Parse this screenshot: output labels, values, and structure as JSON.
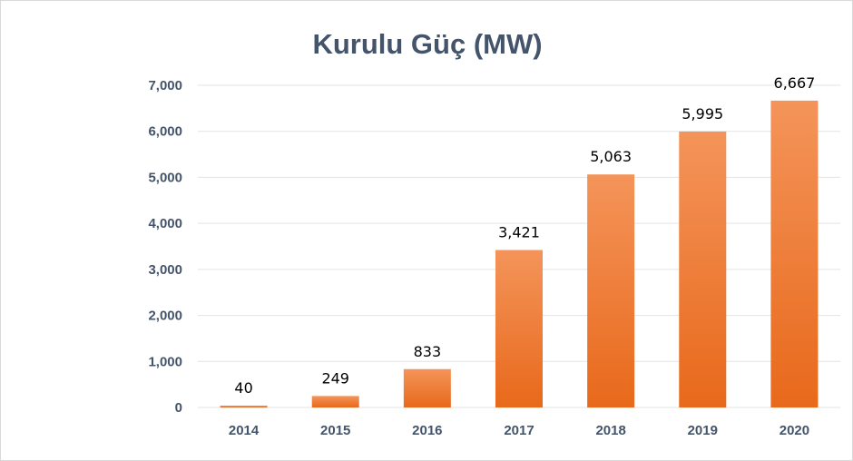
{
  "chart_data": {
    "type": "bar",
    "title": "Kurulu Güç (MW)",
    "xlabel": "",
    "ylabel": "",
    "categories": [
      "2014",
      "2015",
      "2016",
      "2017",
      "2018",
      "2019",
      "2020"
    ],
    "values": [
      40,
      249,
      833,
      3421,
      5063,
      5995,
      6667
    ],
    "value_labels": [
      "40",
      "249",
      "833",
      "3,421",
      "5,063",
      "5,995",
      "6,667"
    ],
    "ylim": [
      0,
      7000
    ],
    "y_ticks": [
      0,
      1000,
      2000,
      3000,
      4000,
      5000,
      6000,
      7000
    ],
    "y_tick_labels": [
      "0",
      "1,000",
      "2,000",
      "3,000",
      "4,000",
      "5,000",
      "6,000",
      "7,000"
    ],
    "grid": true,
    "legend": "none",
    "colors": {
      "bar_top": "#f4945a",
      "bar_bottom": "#e8691b",
      "title": "#44546a",
      "axis_text": "#44546a",
      "grid": "#e3e3e3"
    }
  }
}
